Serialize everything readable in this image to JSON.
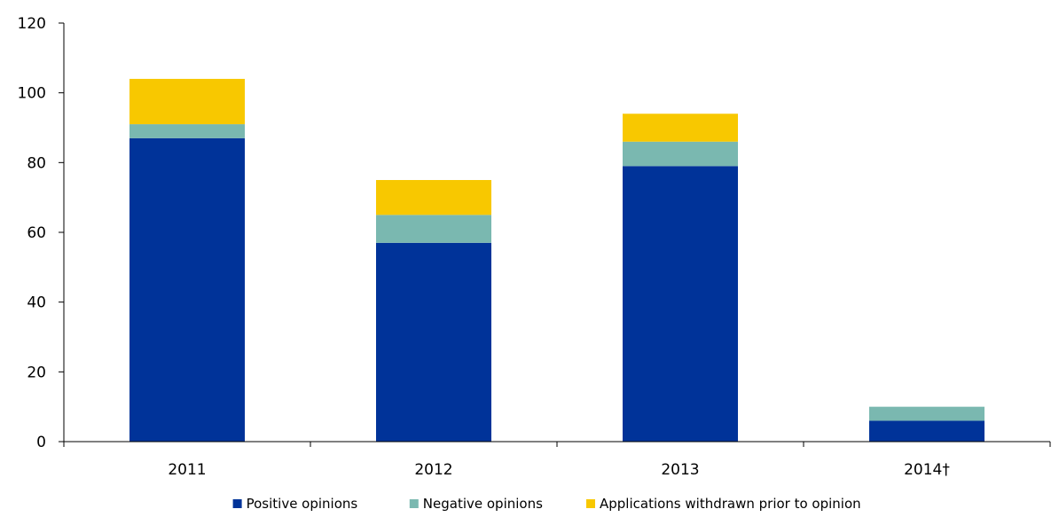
{
  "chart_data": {
    "type": "bar",
    "stacked": true,
    "categories": [
      "2011",
      "2012",
      "2013",
      "2014†"
    ],
    "series": [
      {
        "name": "Positive opinions",
        "color": "#003399",
        "values": [
          87,
          57,
          79,
          6
        ]
      },
      {
        "name": "Negative opinions",
        "color": "#7ab8b0",
        "values": [
          4,
          8,
          7,
          4
        ]
      },
      {
        "name": "Applications withdrawn prior to opinion",
        "color": "#f8c800",
        "values": [
          13,
          10,
          8,
          0
        ]
      }
    ],
    "title": "",
    "xlabel": "",
    "ylabel": "",
    "ylim": [
      0,
      120
    ],
    "yticks": [
      0,
      20,
      40,
      60,
      80,
      100,
      120
    ],
    "grid": false,
    "legend_position": "bottom"
  }
}
